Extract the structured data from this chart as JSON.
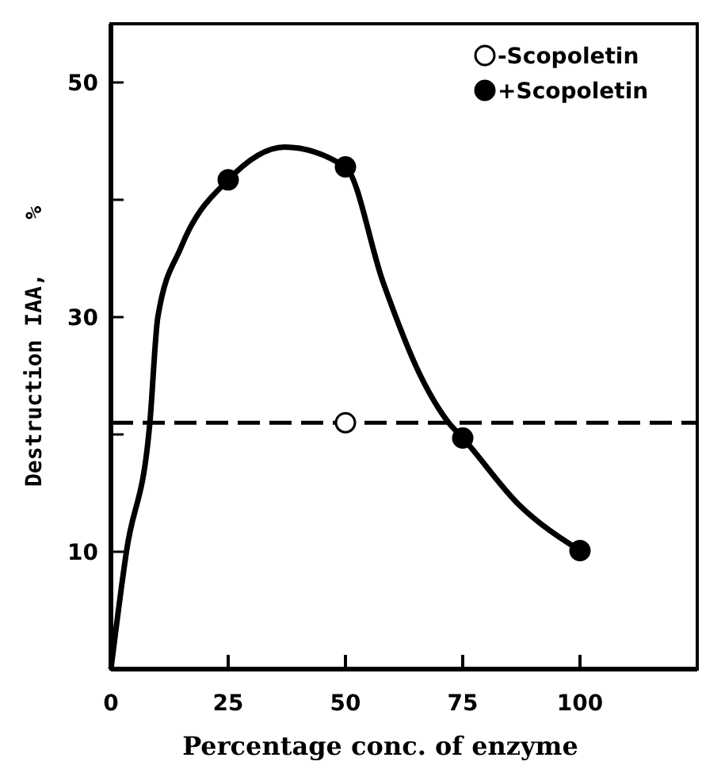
{
  "chart_data": {
    "type": "line",
    "xlabel": "Percentage conc. of enzyme",
    "ylabel": "Destruction IAA,    %",
    "xlim": [
      0,
      125
    ],
    "ylim": [
      0,
      55
    ],
    "xticks": [
      0,
      25,
      50,
      75,
      100
    ],
    "yticks": [
      {
        "value": 10,
        "label": "10"
      },
      {
        "value": 20,
        "label": null
      },
      {
        "value": 30,
        "label": "30"
      },
      {
        "value": 40,
        "label": null
      },
      {
        "value": 50,
        "label": "50"
      }
    ],
    "grid": false,
    "legend": "top right",
    "ref_lines": [
      {
        "axis": "y",
        "value": 21,
        "line_style": "dashed",
        "color": "#000000"
      }
    ],
    "series": [
      {
        "color": "#000000",
        "marker": "none",
        "line_style": "solid",
        "x": [
          0,
          3.3,
          8.3,
          10,
          15,
          25,
          37,
          50,
          58,
          66,
          72,
          75,
          87,
          100
        ],
        "values": [
          0,
          10,
          21,
          30,
          36,
          41.7,
          44.5,
          42.8,
          33,
          25,
          21,
          19.7,
          14,
          10.1
        ]
      },
      {
        "type": "scatter",
        "name": "-Scopoletin",
        "color": "#ffffff",
        "marker": "circle",
        "x": [
          50
        ],
        "values": [
          21
        ]
      },
      {
        "type": "scatter",
        "name": "+Scopoletin",
        "color": "#000000",
        "marker": "circle",
        "x": [
          25,
          50,
          75,
          100
        ],
        "values": [
          41.7,
          42.8,
          19.7,
          10.1
        ]
      }
    ]
  }
}
